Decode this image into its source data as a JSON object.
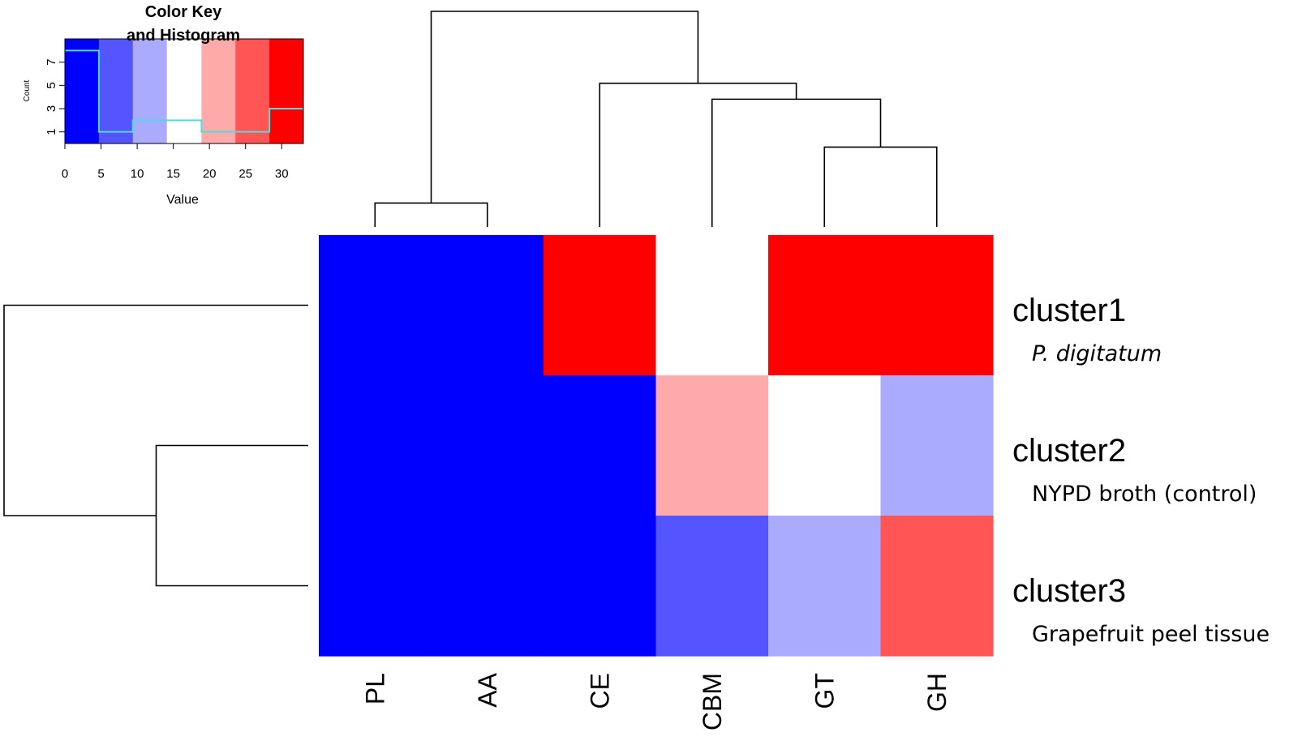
{
  "chart_data": {
    "type": "heatmap",
    "columns": [
      "PL",
      "AA",
      "CE",
      "CBM",
      "GT",
      "GH"
    ],
    "rows": [
      {
        "label": "cluster1",
        "sublabel": "P. digitatum",
        "sublabel_italic": true
      },
      {
        "label": "cluster2",
        "sublabel": "NYPD broth (control)",
        "sublabel_italic": false
      },
      {
        "label": "cluster3",
        "sublabel": "Grapefruit peel tissue",
        "sublabel_italic": false
      }
    ],
    "values": [
      [
        0,
        0,
        33,
        15,
        33,
        33
      ],
      [
        0,
        0,
        0,
        20,
        15,
        11
      ],
      [
        0,
        0,
        0,
        6,
        11,
        26
      ]
    ],
    "color_key": {
      "title_line1": "Color Key",
      "title_line2": "and Histogram",
      "xlabel": "Value",
      "ylabel": "Count",
      "x_range": [
        0,
        33
      ],
      "x_ticks": [
        0,
        5,
        10,
        15,
        20,
        25,
        30
      ],
      "y_range": [
        0,
        9
      ],
      "y_ticks": [
        1,
        3,
        5,
        7
      ],
      "color_breaks": [
        0,
        4.7,
        9.4,
        14.1,
        18.9,
        23.6,
        28.3,
        33
      ],
      "colors": [
        "#0000ff",
        "#5555ff",
        "#aaaaff",
        "#ffffff",
        "#ffaaaa",
        "#ff5555",
        "#ff0000"
      ],
      "histogram_counts": [
        8,
        1,
        2,
        2,
        1,
        1,
        3
      ],
      "histogram_color": "#4fdcdc"
    },
    "column_dendrogram": [
      {
        "merge": [
          "GT",
          "GH"
        ],
        "height": 1.0
      },
      {
        "merge": [
          "CBM",
          "GT+GH"
        ],
        "height": 1.6
      },
      {
        "merge": [
          "PL",
          "AA"
        ],
        "height": 0.3
      },
      {
        "merge": [
          "CE",
          "CBM+GT+GH"
        ],
        "height": 1.8
      },
      {
        "merge": [
          "PL+AA",
          "CE+CBM+GT+GH"
        ],
        "height": 2.7
      }
    ],
    "row_dendrogram": [
      {
        "merge": [
          "cluster2",
          "cluster3"
        ],
        "height": 1.0
      },
      {
        "merge": [
          "cluster1",
          "cluster2+cluster3"
        ],
        "height": 2.0
      }
    ]
  }
}
